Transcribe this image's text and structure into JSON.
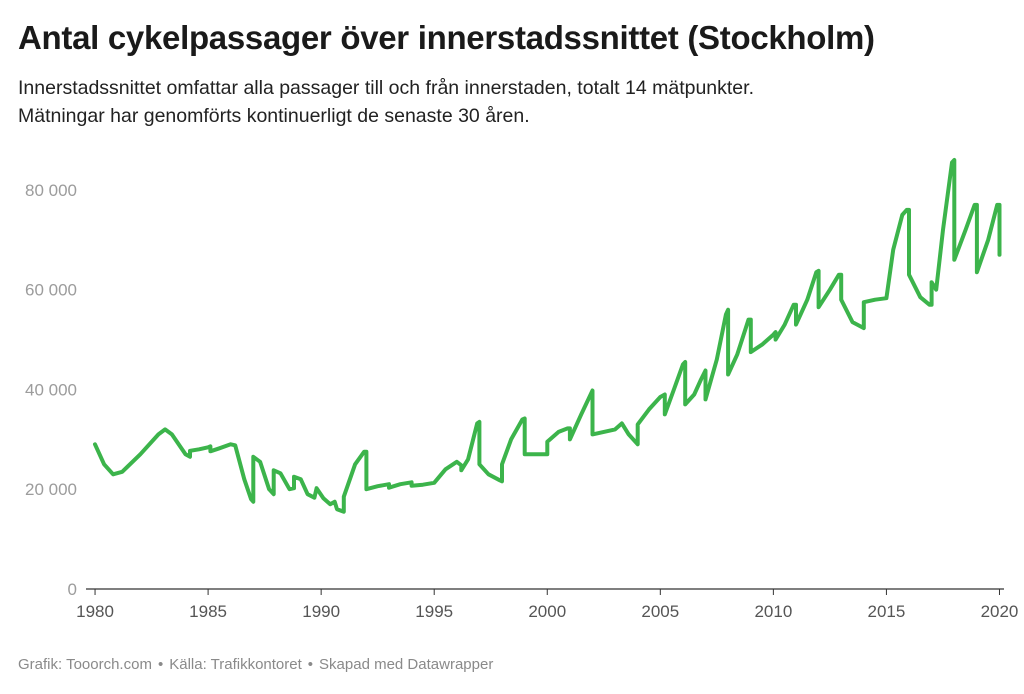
{
  "header": {
    "title": "Antal cykelpassager över innerstadssnittet (Stockholm)",
    "subtitle_line1": "Innerstadssnittet omfattar alla passager till och från innerstaden, totalt 14 mätpunkter.",
    "subtitle_line2": "Mätningar har genomförts kontinuerligt de senaste 30 åren."
  },
  "footer": {
    "credit": "Grafik: Tooorch.com",
    "source": "Källa: Trafikkontoret",
    "made_with": "Skapad med Datawrapper",
    "separator": "•"
  },
  "chart_data": {
    "type": "line",
    "title": "Antal cykelpassager över innerstadssnittet (Stockholm)",
    "xlabel": "",
    "ylabel": "",
    "ylim": [
      0,
      85000
    ],
    "xlim": [
      1979.6,
      2020.2
    ],
    "y_ticks": [
      0,
      20000,
      40000,
      60000,
      80000
    ],
    "y_tick_labels": [
      "0",
      "20 000",
      "40 000",
      "60 000",
      "80 000"
    ],
    "x_ticks": [
      1980,
      1985,
      1990,
      1995,
      2000,
      2005,
      2010,
      2015,
      2020
    ],
    "x_tick_labels": [
      "1980",
      "1985",
      "1990",
      "1995",
      "2000",
      "2005",
      "2010",
      "2015",
      "2020"
    ],
    "grid": false,
    "line_color": "#3cb44b",
    "series": [
      {
        "points": [
          [
            1980.0,
            29000
          ],
          [
            1980.4,
            25000
          ],
          [
            1980.8,
            23000
          ],
          [
            1981.2,
            23500
          ],
          [
            1982.0,
            27000
          ],
          [
            1982.8,
            31000
          ],
          [
            1983.1,
            32000
          ],
          [
            1983.4,
            31000
          ],
          [
            1984.0,
            27000
          ],
          [
            1984.2,
            26500
          ],
          [
            1984.2,
            27700
          ],
          [
            1984.6,
            28000
          ],
          [
            1985.0,
            28400
          ],
          [
            1985.1,
            28600
          ],
          [
            1985.1,
            27600
          ],
          [
            1985.5,
            28200
          ],
          [
            1986.0,
            29000
          ],
          [
            1986.2,
            28800
          ],
          [
            1986.6,
            22000
          ],
          [
            1986.9,
            18000
          ],
          [
            1987.0,
            17500
          ],
          [
            1987.0,
            26500
          ],
          [
            1987.3,
            25500
          ],
          [
            1987.7,
            20000
          ],
          [
            1987.9,
            19000
          ],
          [
            1987.9,
            23800
          ],
          [
            1988.2,
            23200
          ],
          [
            1988.6,
            20000
          ],
          [
            1988.8,
            20200
          ],
          [
            1988.8,
            22500
          ],
          [
            1989.1,
            22000
          ],
          [
            1989.4,
            19000
          ],
          [
            1989.7,
            18300
          ],
          [
            1989.8,
            20200
          ],
          [
            1990.1,
            18200
          ],
          [
            1990.4,
            17000
          ],
          [
            1990.6,
            17500
          ],
          [
            1990.7,
            16000
          ],
          [
            1991.0,
            15500
          ],
          [
            1991.0,
            18500
          ],
          [
            1991.5,
            25000
          ],
          [
            1991.9,
            27500
          ],
          [
            1992.0,
            27500
          ],
          [
            1992.0,
            20000
          ],
          [
            1992.5,
            20600
          ],
          [
            1993.0,
            21000
          ],
          [
            1993.0,
            20300
          ],
          [
            1993.5,
            21000
          ],
          [
            1994.0,
            21400
          ],
          [
            1994.0,
            20700
          ],
          [
            1994.5,
            20900
          ],
          [
            1995.0,
            21300
          ],
          [
            1995.5,
            24000
          ],
          [
            1996.0,
            25500
          ],
          [
            1996.2,
            24800
          ],
          [
            1996.2,
            23800
          ],
          [
            1996.5,
            26000
          ],
          [
            1996.9,
            33200
          ],
          [
            1997.0,
            33500
          ],
          [
            1997.0,
            25000
          ],
          [
            1997.4,
            23000
          ],
          [
            1997.9,
            21800
          ],
          [
            1998.0,
            21600
          ],
          [
            1998.0,
            25000
          ],
          [
            1998.4,
            30000
          ],
          [
            1998.9,
            34000
          ],
          [
            1999.0,
            34200
          ],
          [
            1999.0,
            27000
          ],
          [
            1999.5,
            27000
          ],
          [
            2000.0,
            27000
          ],
          [
            2000.0,
            29500
          ],
          [
            2000.5,
            31500
          ],
          [
            2000.9,
            32200
          ],
          [
            2001.0,
            32200
          ],
          [
            2001.0,
            30000
          ],
          [
            2001.5,
            35000
          ],
          [
            2002.0,
            39800
          ],
          [
            2002.0,
            31000
          ],
          [
            2002.5,
            31500
          ],
          [
            2003.0,
            32000
          ],
          [
            2003.3,
            33200
          ],
          [
            2003.6,
            31000
          ],
          [
            2004.0,
            29000
          ],
          [
            2004.0,
            33000
          ],
          [
            2004.5,
            36000
          ],
          [
            2005.0,
            38500
          ],
          [
            2005.2,
            39000
          ],
          [
            2005.2,
            35000
          ],
          [
            2005.6,
            40000
          ],
          [
            2006.0,
            45000
          ],
          [
            2006.1,
            45500
          ],
          [
            2006.1,
            37000
          ],
          [
            2006.5,
            39000
          ],
          [
            2006.8,
            42000
          ],
          [
            2007.0,
            43800
          ],
          [
            2007.0,
            38000
          ],
          [
            2007.5,
            46000
          ],
          [
            2007.9,
            55000
          ],
          [
            2008.0,
            56000
          ],
          [
            2008.0,
            43000
          ],
          [
            2008.4,
            47000
          ],
          [
            2008.9,
            54000
          ],
          [
            2009.0,
            54000
          ],
          [
            2009.0,
            47500
          ],
          [
            2009.5,
            49000
          ],
          [
            2010.0,
            51000
          ],
          [
            2010.1,
            51500
          ],
          [
            2010.1,
            50000
          ],
          [
            2010.5,
            53000
          ],
          [
            2010.9,
            57000
          ],
          [
            2011.0,
            57000
          ],
          [
            2011.0,
            53000
          ],
          [
            2011.5,
            58000
          ],
          [
            2011.9,
            63500
          ],
          [
            2012.0,
            63800
          ],
          [
            2012.0,
            56500
          ],
          [
            2012.5,
            60000
          ],
          [
            2012.9,
            63000
          ],
          [
            2013.0,
            63000
          ],
          [
            2013.0,
            58000
          ],
          [
            2013.5,
            53500
          ],
          [
            2014.0,
            52300
          ],
          [
            2014.0,
            57500
          ],
          [
            2014.5,
            58000
          ],
          [
            2015.0,
            58300
          ],
          [
            2015.3,
            68000
          ],
          [
            2015.7,
            75000
          ],
          [
            2015.9,
            76000
          ],
          [
            2016.0,
            76000
          ],
          [
            2016.0,
            63000
          ],
          [
            2016.5,
            58500
          ],
          [
            2016.9,
            57000
          ],
          [
            2017.0,
            57000
          ],
          [
            2017.0,
            61500
          ],
          [
            2017.2,
            60000
          ],
          [
            2017.5,
            72000
          ],
          [
            2017.9,
            85500
          ],
          [
            2018.0,
            86000
          ],
          [
            2018.0,
            66000
          ],
          [
            2018.5,
            72000
          ],
          [
            2018.9,
            77000
          ],
          [
            2019.0,
            77000
          ],
          [
            2019.0,
            63500
          ],
          [
            2019.5,
            70000
          ],
          [
            2019.9,
            77000
          ],
          [
            2020.0,
            77000
          ],
          [
            2020.0,
            67000
          ]
        ]
      }
    ]
  }
}
